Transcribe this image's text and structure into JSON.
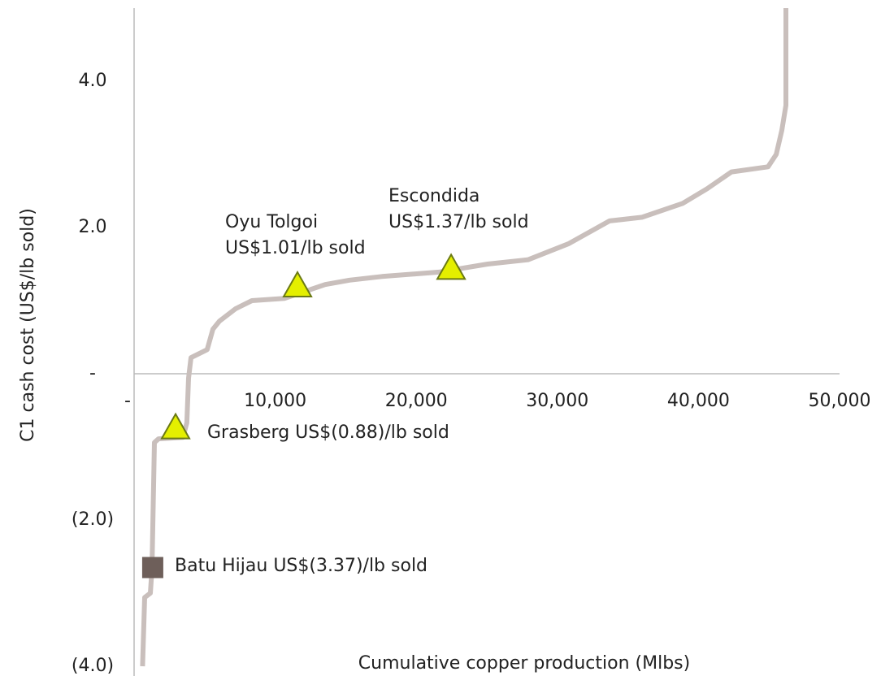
{
  "chart_data": {
    "type": "line",
    "x_label": "Cumulative copper production (Mlbs)",
    "y_label": "C1 cash cost (US$/lb sold)",
    "xlim": [
      0,
      50000
    ],
    "ylim": [
      -4.0,
      5.0
    ],
    "xticks": [
      {
        "value": 0,
        "label": "-"
      },
      {
        "value": 10000,
        "label": "10,000"
      },
      {
        "value": 20000,
        "label": "20,000"
      },
      {
        "value": 30000,
        "label": "30,000"
      },
      {
        "value": 40000,
        "label": "40,000"
      },
      {
        "value": 50000,
        "label": "50,000"
      }
    ],
    "yticks": [
      {
        "value": 4,
        "label": "4.0"
      },
      {
        "value": 2,
        "label": "2.0"
      },
      {
        "value": 0,
        "label": "-"
      },
      {
        "value": -2,
        "label": "(2.0)"
      },
      {
        "value": -4,
        "label": "(4.0)"
      }
    ],
    "grid": false,
    "series": [
      {
        "color": "#c9bfbc",
        "x": [
          600,
          750,
          1150,
          1270,
          1440,
          1730,
          3460,
          3740,
          3860,
          4030,
          5180,
          5590,
          6050,
          7200,
          8350,
          10650,
          13540,
          15270,
          17570,
          21600,
          25060,
          27940,
          30820,
          33700,
          36000,
          38880,
          40610,
          42340,
          44930,
          45510,
          45910,
          46200,
          46200
        ],
        "values": [
          -4.0,
          -3.06,
          -3.0,
          -2.67,
          -0.94,
          -0.89,
          -0.87,
          -0.67,
          -0.06,
          0.22,
          0.33,
          0.61,
          0.72,
          0.89,
          1.0,
          1.03,
          1.22,
          1.28,
          1.33,
          1.39,
          1.5,
          1.56,
          1.78,
          2.09,
          2.14,
          2.33,
          2.53,
          2.76,
          2.83,
          3.0,
          3.33,
          3.67,
          5.0
        ]
      }
    ],
    "points": [
      {
        "lines": [
          "Batu Hijau US$(3.37)/lb sold"
        ],
        "x": 1320,
        "y": -2.65,
        "shape": "square",
        "color": "#6e5f5a"
      },
      {
        "lines": [
          "Grasberg US$(0.88)/lb sold"
        ],
        "x": 2940,
        "y": -0.74,
        "shape": "triangle",
        "color": "#e4ef00"
      },
      {
        "lines": [
          "Oyu Tolgoi",
          "US$1.01/lb sold"
        ],
        "x": 11580,
        "y": 1.2,
        "shape": "triangle",
        "color": "#e4ef00"
      },
      {
        "lines": [
          "Escondida",
          "US$1.37/lb sold"
        ],
        "x": 22470,
        "y": 1.44,
        "shape": "triangle",
        "color": "#e4ef00"
      }
    ]
  }
}
